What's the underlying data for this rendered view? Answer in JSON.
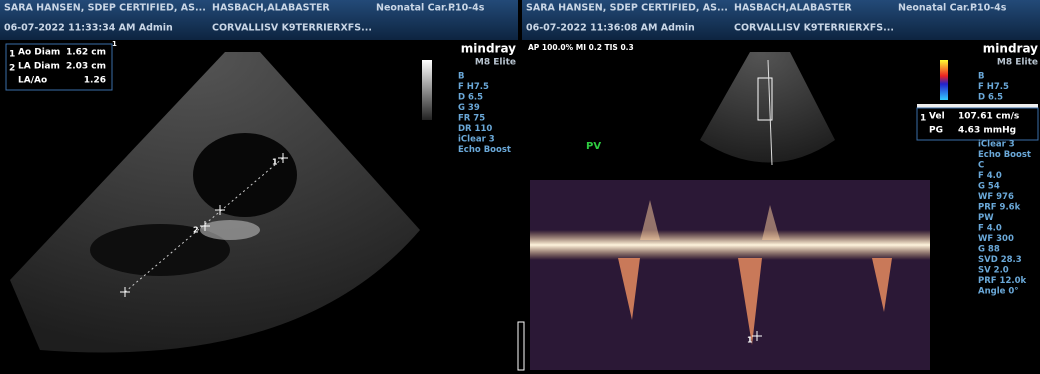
{
  "left_panel": {
    "header": {
      "row1": [
        "SARA HANSEN, SDEP CERTIFIED, AS...",
        "HASBACH,ALABASTER",
        "Neonatal Car...",
        "P10-4s"
      ],
      "row2": [
        "06-07-2022 11:33:34 AM Admin",
        "CORVALLISV K9TERRIERXFS..."
      ]
    },
    "measurements": [
      {
        "index": "1",
        "label": "Ao Diam",
        "value": "1.62 cm"
      },
      {
        "index": "2",
        "label": "LA Diam",
        "value": "2.03 cm"
      },
      {
        "label": "LA/Ao",
        "value": "1.26"
      }
    ],
    "measure_marker": "1",
    "brand": "mindray",
    "model": "M8 Elite",
    "params": [
      "B",
      "F H7.5",
      "D 6.5",
      "G 39",
      "FR 75",
      "DR 110",
      "iClear 3",
      "Echo Boost"
    ],
    "calipers": [
      "1",
      "2"
    ]
  },
  "right_panel": {
    "header": {
      "row1": [
        "SARA HANSEN, SDEP CERTIFIED, AS...",
        "HASBACH,ALABASTER",
        "Neonatal Car...",
        "P10-4s"
      ],
      "row2": [
        "06-07-2022 11:36:08 AM Admin",
        "CORVALLISV K9TERRIERXFS..."
      ]
    },
    "status": "AP 100.0%  MI 0.2  TIS 0.3",
    "brand": "mindray",
    "model": "M8 Elite",
    "params_top": [
      "B",
      "F H7.5",
      "D 6.5"
    ],
    "measurements": [
      {
        "index": "1",
        "label": "Vel",
        "value": "107.61 cm/s"
      },
      {
        "label": "PG",
        "value": "4.63 mmHg"
      }
    ],
    "params_bottom": [
      "iClear 3",
      "Echo Boost",
      "C",
      "F 4.0",
      "G 54",
      "WF 976",
      "PRF 9.6k",
      "PW",
      "F 4.0",
      "WF 300",
      "G 88",
      "SVD 28.3",
      "SV 2.0",
      "PRF 12.0k",
      "Angle 0°"
    ],
    "mode_label": "PV",
    "calipers": [
      "1"
    ]
  }
}
